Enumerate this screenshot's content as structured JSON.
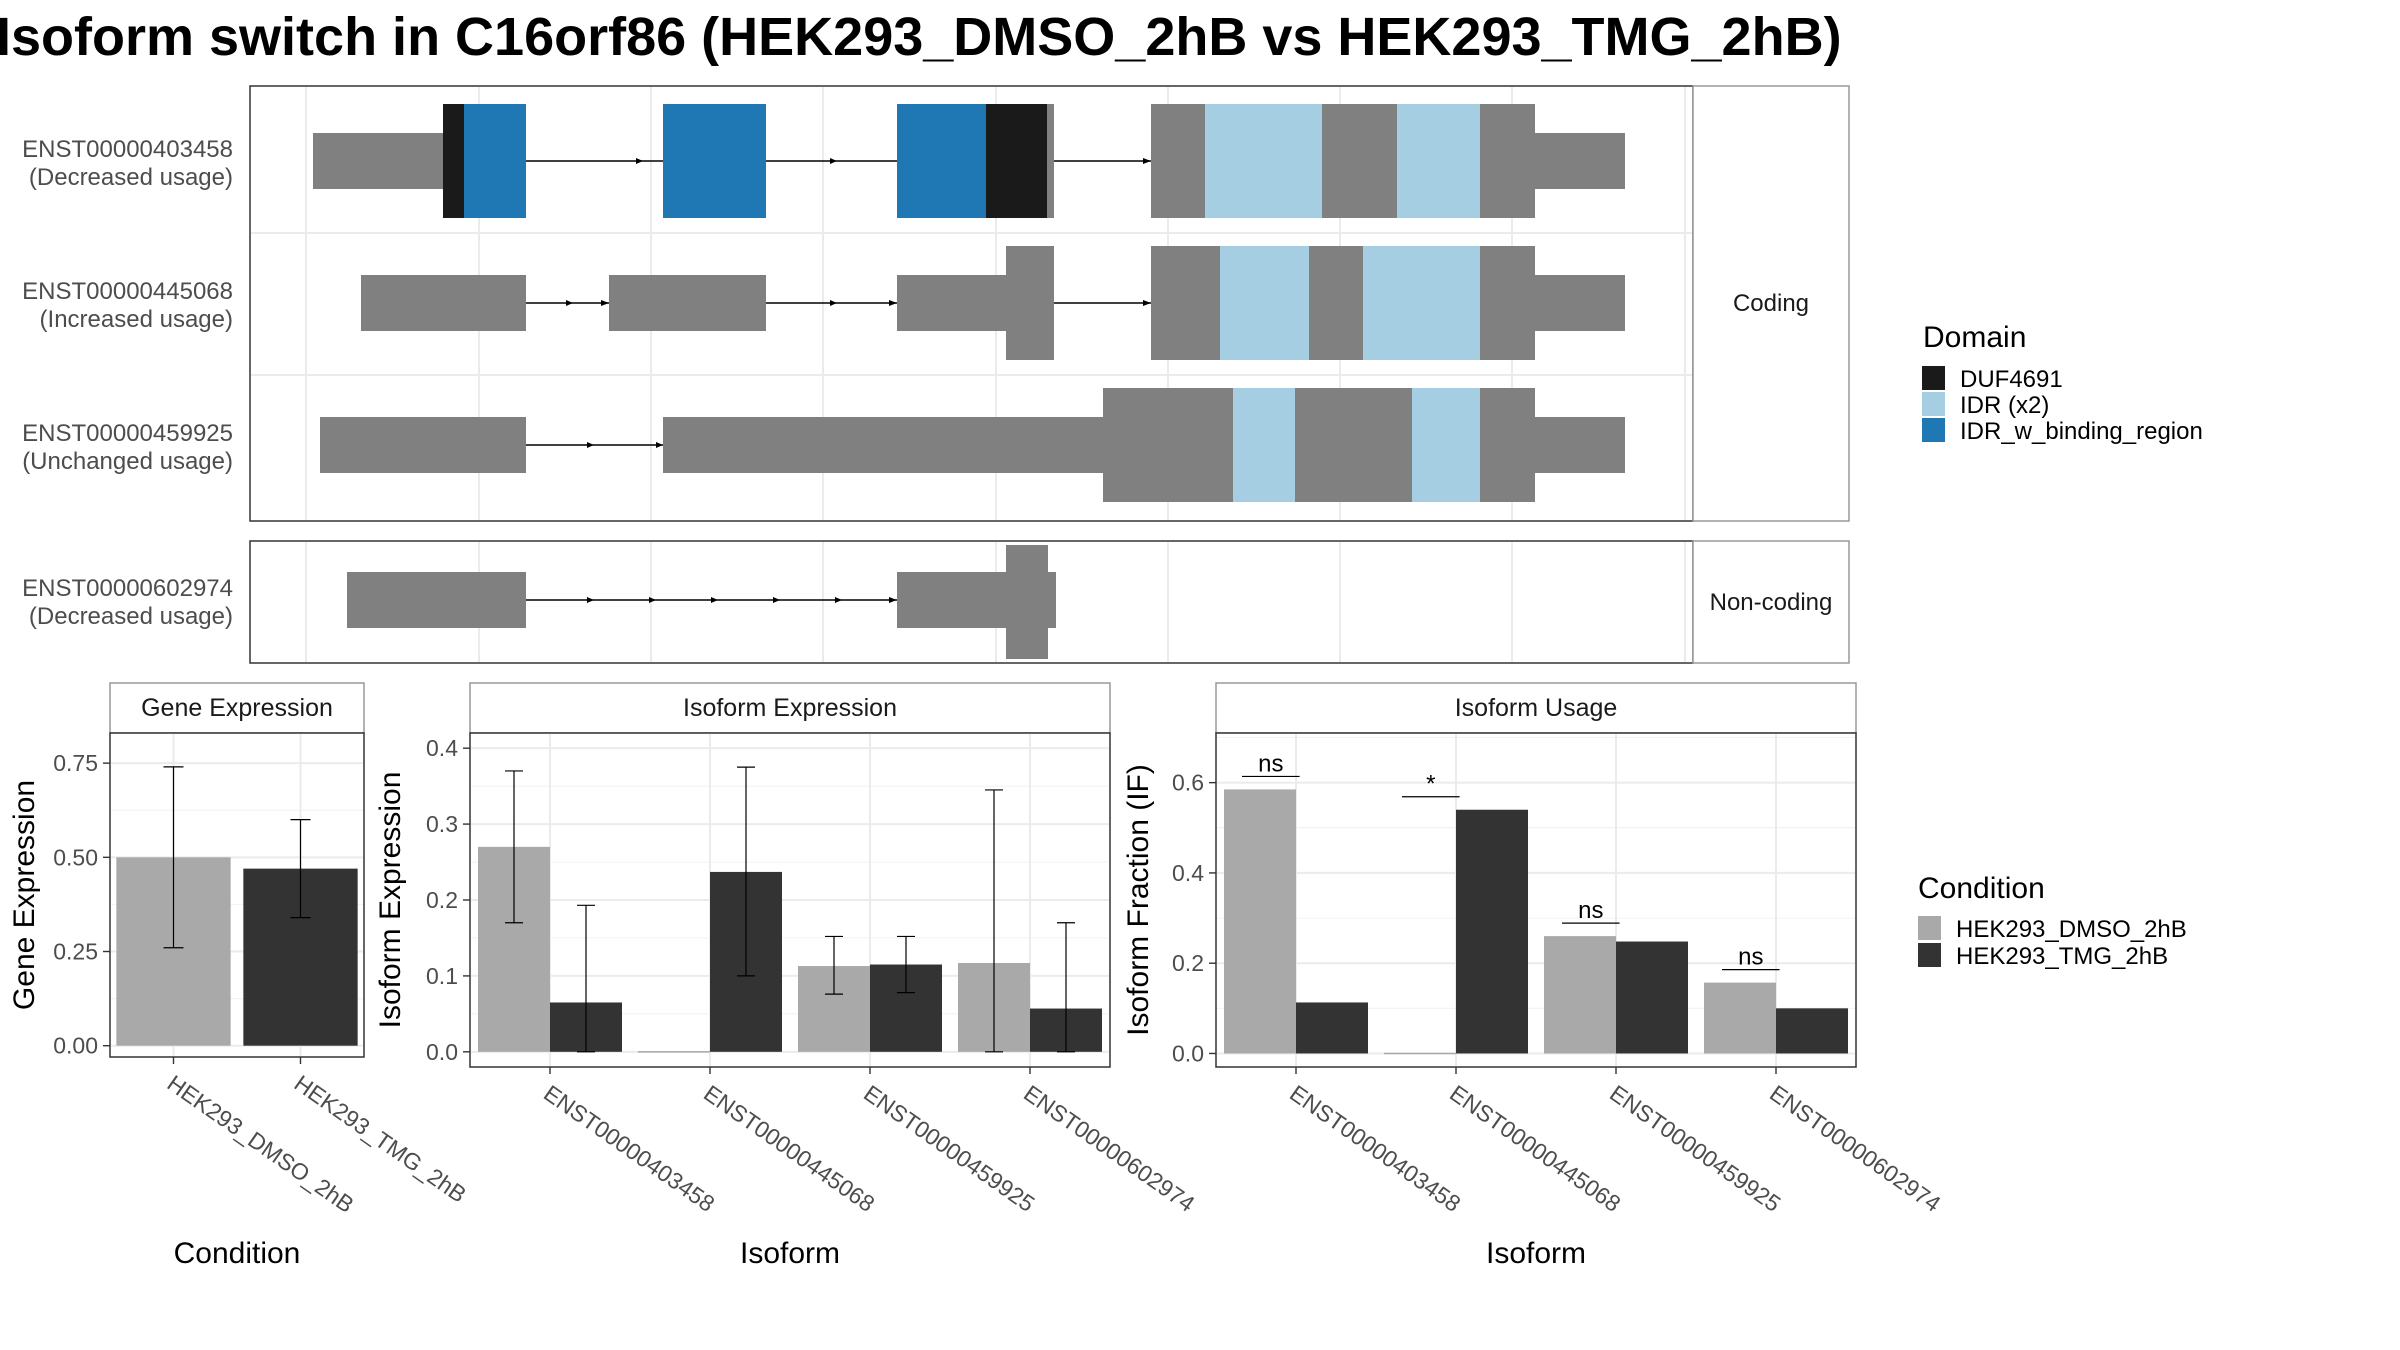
{
  "title": "Isoform switch in C16orf86 (HEK293_DMSO_2hB vs HEK293_TMG_2hB)",
  "colors": {
    "exon": "#808080",
    "intron": "#000000",
    "panel_border": "#333333",
    "strip_border": "#999999",
    "grid": "#ebebeb",
    "condition_dmso": "#a9a9a9",
    "condition_tmg": "#333333"
  },
  "transcript_plot": {
    "facets": [
      {
        "label": "Coding",
        "transcripts": [
          {
            "id": "ENST00000403458",
            "note": "(Decreased usage)"
          },
          {
            "id": "ENST00000445068",
            "note": "(Increased usage)"
          },
          {
            "id": "ENST00000459925",
            "note": "(Unchanged usage)"
          }
        ]
      },
      {
        "label": "Non-coding",
        "transcripts": [
          {
            "id": "ENST00000602974",
            "note": "(Decreased usage)"
          }
        ]
      }
    ],
    "domain_legend": {
      "title": "Domain",
      "items": [
        {
          "label": "DUF4691",
          "color": "#1a1a1a"
        },
        {
          "label": "IDR (x2)",
          "color": "#a6cee3"
        },
        {
          "label": "IDR_w_binding_region",
          "color": "#1f78b4"
        }
      ]
    }
  },
  "condition_legend": {
    "title": "Condition",
    "items": [
      {
        "label": "HEK293_DMSO_2hB",
        "color": "#a9a9a9"
      },
      {
        "label": "HEK293_TMG_2hB",
        "color": "#333333"
      }
    ]
  },
  "chart_data": [
    {
      "type": "bar",
      "title": "Gene Expression",
      "xlabel": "Condition",
      "ylabel": "Gene Expression",
      "categories": [
        "HEK293_DMSO_2hB",
        "HEK293_TMG_2hB"
      ],
      "values": [
        0.5,
        0.47
      ],
      "error_low": [
        0.26,
        0.34
      ],
      "error_high": [
        0.74,
        0.6
      ],
      "ylim": [
        -0.03,
        0.83
      ],
      "yticks": [
        "0.00",
        "0.25",
        "0.50",
        "0.75"
      ],
      "grid": true
    },
    {
      "type": "bar",
      "title": "Isoform Expression",
      "xlabel": "Isoform",
      "ylabel": "Isoform Expression",
      "categories": [
        "ENST00000403458",
        "ENST00000445068",
        "ENST00000459925",
        "ENST00000602974"
      ],
      "series": [
        {
          "name": "HEK293_DMSO_2hB",
          "values": [
            0.27,
            0.0,
            0.113,
            0.117
          ],
          "error_low": [
            0.17,
            0.0,
            0.076,
            0.0
          ],
          "error_high": [
            0.37,
            0.0,
            0.152,
            0.345
          ]
        },
        {
          "name": "HEK293_TMG_2hB",
          "values": [
            0.065,
            0.237,
            0.115,
            0.057
          ],
          "error_low": [
            0.0,
            0.1,
            0.078,
            0.0
          ],
          "error_high": [
            0.193,
            0.375,
            0.152,
            0.17
          ]
        }
      ],
      "ylim": [
        -0.02,
        0.42
      ],
      "yticks": [
        "0.0",
        "0.1",
        "0.2",
        "0.3",
        "0.4"
      ],
      "grid": true
    },
    {
      "type": "bar",
      "title": "Isoform Usage",
      "xlabel": "Isoform",
      "ylabel": "Isoform Fraction (IF)",
      "categories": [
        "ENST00000403458",
        "ENST00000445068",
        "ENST00000459925",
        "ENST00000602974"
      ],
      "series": [
        {
          "name": "HEK293_DMSO_2hB",
          "values": [
            0.585,
            0.0,
            0.26,
            0.157
          ]
        },
        {
          "name": "HEK293_TMG_2hB",
          "values": [
            0.113,
            0.54,
            0.248,
            0.1
          ]
        }
      ],
      "significance": [
        "ns",
        "*",
        "ns",
        "ns"
      ],
      "ylim": [
        -0.03,
        0.71
      ],
      "yticks": [
        "0.0",
        "0.2",
        "0.4",
        "0.6"
      ],
      "grid": true
    }
  ]
}
